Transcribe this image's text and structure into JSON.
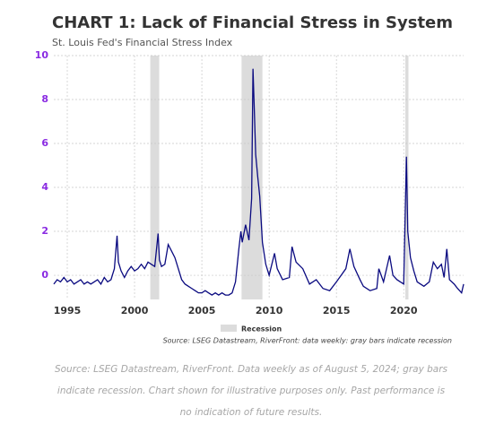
{
  "chart_data": {
    "type": "line",
    "title": "CHART 1: Lack of Financial Stress in System",
    "subtitle": "St. Louis Fed's Financial Stress Index",
    "source_note": "Source: LSEG Datastream, RiverFront: data weekly: gray bars indicate recession",
    "footnote": "Source: LSEG Datastream, RiverFront. Data weekly as of August 5, 2024; gray bars indicate recession. Chart shown for illustrative purposes only. Past performance is no indication of future results.",
    "recession_label": "Recession",
    "recession_color": "#dcdcdc",
    "recessions": [
      [
        2001.17,
        2001.83
      ],
      [
        2007.95,
        2009.5
      ],
      [
        2020.12,
        2020.35
      ]
    ],
    "xlim": [
      1994,
      2024.45
    ],
    "xticks": [
      1995,
      2000,
      2005,
      2010,
      2015,
      2020
    ],
    "ylim": [
      -1.1,
      10
    ],
    "yticks": [
      0,
      2,
      4,
      6,
      8,
      10
    ],
    "grid": true,
    "series": [
      {
        "color": "#0a0a80",
        "x": [
          1994.0,
          1994.25,
          1994.5,
          1994.75,
          1995,
          1995.25,
          1995.5,
          1995.75,
          1996,
          1996.25,
          1996.5,
          1996.75,
          1997,
          1997.25,
          1997.5,
          1997.75,
          1998,
          1998.25,
          1998.5,
          1998.7,
          1998.8,
          1999,
          1999.25,
          1999.5,
          1999.75,
          2000,
          2000.25,
          2000.5,
          2000.75,
          2001,
          2001.25,
          2001.5,
          2001.75,
          2001.85,
          2002,
          2002.25,
          2002.5,
          2002.75,
          2003,
          2003.25,
          2003.5,
          2003.75,
          2004,
          2004.25,
          2004.5,
          2004.75,
          2005,
          2005.25,
          2005.5,
          2005.75,
          2006,
          2006.25,
          2006.5,
          2006.75,
          2007,
          2007.25,
          2007.5,
          2007.75,
          2007.9,
          2008,
          2008.25,
          2008.5,
          2008.7,
          2008.8,
          2008.9,
          2009,
          2009.15,
          2009.3,
          2009.5,
          2009.75,
          2010,
          2010.4,
          2010.6,
          2011,
          2011.5,
          2011.7,
          2012,
          2012.5,
          2013,
          2013.5,
          2014,
          2014.5,
          2015,
          2015.7,
          2016,
          2016.3,
          2016.75,
          2017,
          2017.5,
          2018,
          2018.15,
          2018.5,
          2018.95,
          2019.2,
          2019.5,
          2019.75,
          2020.0,
          2020.2,
          2020.3,
          2020.5,
          2020.75,
          2021,
          2021.5,
          2021.9,
          2022.2,
          2022.5,
          2022.8,
          2023,
          2023.2,
          2023.4,
          2023.75,
          2024,
          2024.3,
          2024.45
        ],
        "values": [
          -0.4,
          -0.2,
          -0.3,
          -0.1,
          -0.3,
          -0.2,
          -0.4,
          -0.3,
          -0.2,
          -0.4,
          -0.3,
          -0.4,
          -0.3,
          -0.2,
          -0.4,
          -0.1,
          -0.3,
          -0.2,
          0.3,
          1.8,
          0.6,
          0.2,
          -0.1,
          0.2,
          0.4,
          0.2,
          0.3,
          0.5,
          0.3,
          0.6,
          0.5,
          0.4,
          1.9,
          0.7,
          0.4,
          0.5,
          1.4,
          1.1,
          0.8,
          0.3,
          -0.2,
          -0.4,
          -0.5,
          -0.6,
          -0.7,
          -0.8,
          -0.8,
          -0.7,
          -0.8,
          -0.9,
          -0.8,
          -0.9,
          -0.8,
          -0.9,
          -0.9,
          -0.8,
          -0.3,
          1.2,
          2.0,
          1.5,
          2.3,
          1.6,
          3.5,
          9.4,
          7.5,
          5.5,
          4.5,
          3.6,
          1.5,
          0.5,
          0.0,
          1.0,
          0.3,
          -0.2,
          -0.1,
          1.3,
          0.6,
          0.3,
          -0.4,
          -0.2,
          -0.6,
          -0.7,
          -0.3,
          0.3,
          1.2,
          0.4,
          -0.2,
          -0.5,
          -0.7,
          -0.6,
          0.3,
          -0.3,
          0.9,
          0.0,
          -0.2,
          -0.3,
          -0.4,
          5.4,
          2.0,
          0.8,
          0.2,
          -0.3,
          -0.5,
          -0.3,
          0.6,
          0.3,
          0.5,
          -0.1,
          1.2,
          -0.2,
          -0.4,
          -0.6,
          -0.8,
          -0.4
        ]
      }
    ]
  }
}
